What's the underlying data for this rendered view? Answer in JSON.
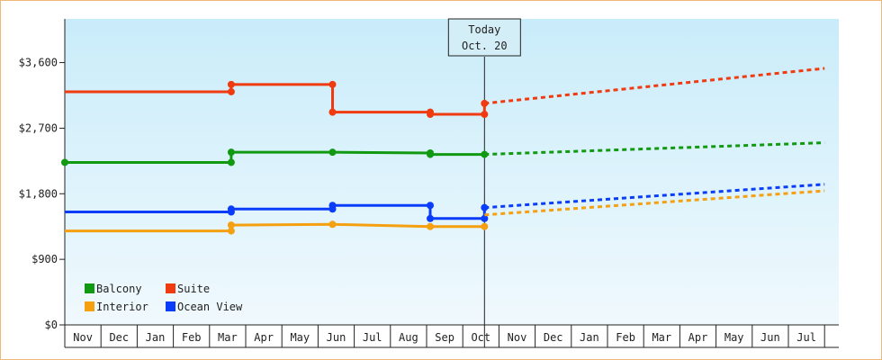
{
  "chart_data": {
    "type": "line",
    "x_unit": "month",
    "months": [
      "Nov",
      "Dec",
      "Jan",
      "Feb",
      "Mar",
      "Apr",
      "May",
      "Jun",
      "Jul",
      "Aug",
      "Sep",
      "Oct",
      "Nov",
      "Dec",
      "Jan",
      "Feb",
      "Mar",
      "Apr",
      "May",
      "Jun",
      "Jul"
    ],
    "yticks": [
      {
        "value": 0,
        "label": "$0"
      },
      {
        "value": 900,
        "label": "$900"
      },
      {
        "value": 1800,
        "label": "$1,800"
      },
      {
        "value": 2700,
        "label": "$2,700"
      },
      {
        "value": 3600,
        "label": "$3,600"
      }
    ],
    "ylim": [
      0,
      4200
    ],
    "xlim": [
      0,
      21
    ],
    "today": {
      "x": 11.6,
      "line1": "Today",
      "line2": "Oct. 20"
    },
    "series": [
      {
        "name": "Suite",
        "color": "#f03a10",
        "history": [
          [
            0,
            3200
          ],
          [
            4.6,
            3200
          ],
          [
            4.6,
            3300
          ],
          [
            7.4,
            3300
          ],
          [
            7.4,
            2920
          ],
          [
            10.1,
            2920
          ],
          [
            10.1,
            2890
          ],
          [
            11.6,
            2890
          ],
          [
            11.6,
            3040
          ]
        ],
        "markers": [
          [
            4.6,
            3200
          ],
          [
            4.6,
            3300
          ],
          [
            7.4,
            3300
          ],
          [
            7.4,
            2920
          ],
          [
            10.1,
            2920
          ],
          [
            10.1,
            2890
          ],
          [
            11.6,
            2890
          ],
          [
            11.6,
            3040
          ]
        ],
        "forecast": [
          [
            11.6,
            3040
          ],
          [
            21,
            3520
          ]
        ]
      },
      {
        "name": "Balcony",
        "color": "#119911",
        "history": [
          [
            0,
            2230
          ],
          [
            4.6,
            2230
          ],
          [
            4.6,
            2370
          ],
          [
            7.4,
            2370
          ],
          [
            10.1,
            2360
          ],
          [
            10.1,
            2340
          ],
          [
            11.6,
            2340
          ]
        ],
        "markers": [
          [
            0,
            2230
          ],
          [
            4.6,
            2230
          ],
          [
            4.6,
            2370
          ],
          [
            7.4,
            2370
          ],
          [
            10.1,
            2360
          ],
          [
            10.1,
            2340
          ],
          [
            11.6,
            2340
          ]
        ],
        "forecast": [
          [
            11.6,
            2340
          ],
          [
            21,
            2500
          ]
        ]
      },
      {
        "name": "Ocean View",
        "color": "#0a3dfa",
        "history": [
          [
            0,
            1550
          ],
          [
            4.6,
            1550
          ],
          [
            4.6,
            1590
          ],
          [
            7.4,
            1590
          ],
          [
            7.4,
            1640
          ],
          [
            10.1,
            1640
          ],
          [
            10.1,
            1460
          ],
          [
            11.6,
            1460
          ],
          [
            11.6,
            1610
          ]
        ],
        "markers": [
          [
            4.6,
            1550
          ],
          [
            4.6,
            1590
          ],
          [
            7.4,
            1590
          ],
          [
            7.4,
            1640
          ],
          [
            10.1,
            1640
          ],
          [
            10.1,
            1460
          ],
          [
            11.6,
            1460
          ],
          [
            11.6,
            1610
          ]
        ],
        "forecast": [
          [
            11.6,
            1610
          ],
          [
            21,
            1930
          ]
        ]
      },
      {
        "name": "Interior",
        "color": "#f5a010",
        "history": [
          [
            0,
            1290
          ],
          [
            4.6,
            1290
          ],
          [
            4.6,
            1370
          ],
          [
            7.4,
            1380
          ],
          [
            10.1,
            1350
          ],
          [
            11.6,
            1350
          ]
        ],
        "markers": [
          [
            4.6,
            1290
          ],
          [
            4.6,
            1370
          ],
          [
            7.4,
            1380
          ],
          [
            10.1,
            1350
          ],
          [
            11.6,
            1350
          ]
        ],
        "forecast": [
          [
            11.6,
            1510
          ],
          [
            21,
            1840
          ]
        ]
      }
    ],
    "legend": [
      {
        "label": "Balcony",
        "color": "#119911"
      },
      {
        "label": "Suite",
        "color": "#f03a10"
      },
      {
        "label": "Interior",
        "color": "#f5a010"
      },
      {
        "label": "Ocean View",
        "color": "#0a3dfa"
      }
    ],
    "grid": false,
    "legend_position": "bottom-left"
  }
}
